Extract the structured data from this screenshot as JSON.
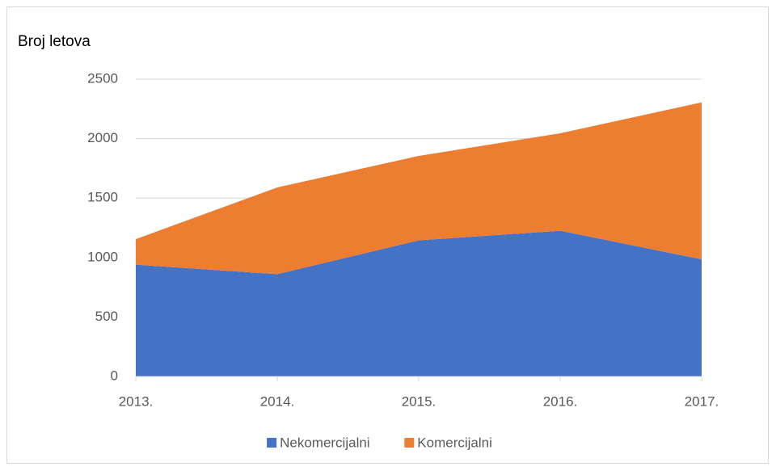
{
  "chart_data": {
    "type": "stacked_area",
    "title": "Broj letova",
    "categories": [
      "2013.",
      "2014.",
      "2015.",
      "2016.",
      "2017."
    ],
    "series": [
      {
        "name": "Nekomercijalni",
        "color": "#4472c4",
        "values": [
          940,
          860,
          1145,
          1225,
          985
        ]
      },
      {
        "name": "Komercijalni",
        "color": "#ed7d31",
        "values": [
          215,
          730,
          710,
          820,
          1320
        ]
      }
    ],
    "ylim": [
      0,
      2500
    ],
    "yticks": [
      0,
      500,
      1000,
      1500,
      2000,
      2500
    ],
    "grid": true,
    "legend": "bottom"
  }
}
